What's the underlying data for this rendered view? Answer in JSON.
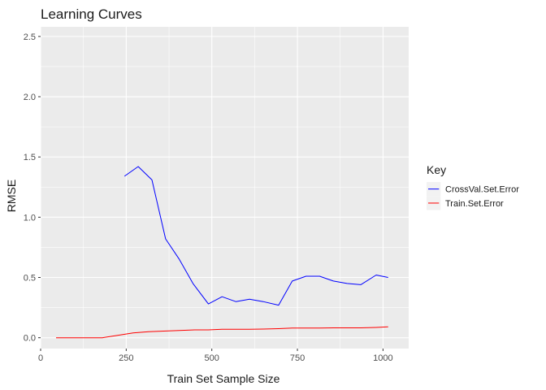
{
  "chart_data": {
    "type": "line",
    "title": "Learning Curves",
    "xlabel": "Train Set Sample Size",
    "ylabel": "RMSE",
    "xlim": [
      0,
      1075
    ],
    "ylim": [
      -0.09,
      2.58
    ],
    "x_ticks": [
      0,
      250,
      500,
      750,
      1000
    ],
    "y_ticks": [
      0.0,
      0.5,
      1.0,
      1.5,
      2.0,
      2.5
    ],
    "x_tick_labels": [
      "0",
      "250",
      "500",
      "750",
      "1000"
    ],
    "y_tick_labels": [
      "0.0",
      "0.5",
      "1.0",
      "1.5",
      "2.0",
      "2.5"
    ],
    "grid": true,
    "legend": {
      "title": "Key",
      "placement": "right"
    },
    "series": [
      {
        "name": "CrossVal.Set.Error",
        "color": "#0000ff",
        "points": [
          [
            245,
            1.34
          ],
          [
            285,
            1.42
          ],
          [
            325,
            1.31
          ],
          [
            365,
            0.82
          ],
          [
            405,
            0.65
          ],
          [
            445,
            0.45
          ],
          [
            490,
            0.28
          ],
          [
            530,
            0.34
          ],
          [
            570,
            0.3
          ],
          [
            610,
            0.32
          ],
          [
            650,
            0.3
          ],
          [
            695,
            0.27
          ],
          [
            735,
            0.47
          ],
          [
            775,
            0.51
          ],
          [
            815,
            0.51
          ],
          [
            855,
            0.47
          ],
          [
            895,
            0.45
          ],
          [
            935,
            0.44
          ],
          [
            980,
            0.52
          ],
          [
            1015,
            0.5
          ]
        ]
      },
      {
        "name": "Train.Set.Error",
        "color": "#ff0000",
        "points": [
          [
            45,
            0.0
          ],
          [
            90,
            0.0
          ],
          [
            135,
            0.0
          ],
          [
            180,
            0.0
          ],
          [
            225,
            0.02
          ],
          [
            270,
            0.04
          ],
          [
            315,
            0.05
          ],
          [
            360,
            0.055
          ],
          [
            405,
            0.06
          ],
          [
            450,
            0.065
          ],
          [
            490,
            0.065
          ],
          [
            530,
            0.07
          ],
          [
            570,
            0.07
          ],
          [
            610,
            0.07
          ],
          [
            650,
            0.072
          ],
          [
            695,
            0.075
          ],
          [
            735,
            0.08
          ],
          [
            775,
            0.08
          ],
          [
            815,
            0.08
          ],
          [
            855,
            0.082
          ],
          [
            895,
            0.082
          ],
          [
            935,
            0.082
          ],
          [
            980,
            0.085
          ],
          [
            1015,
            0.09
          ]
        ]
      }
    ]
  }
}
